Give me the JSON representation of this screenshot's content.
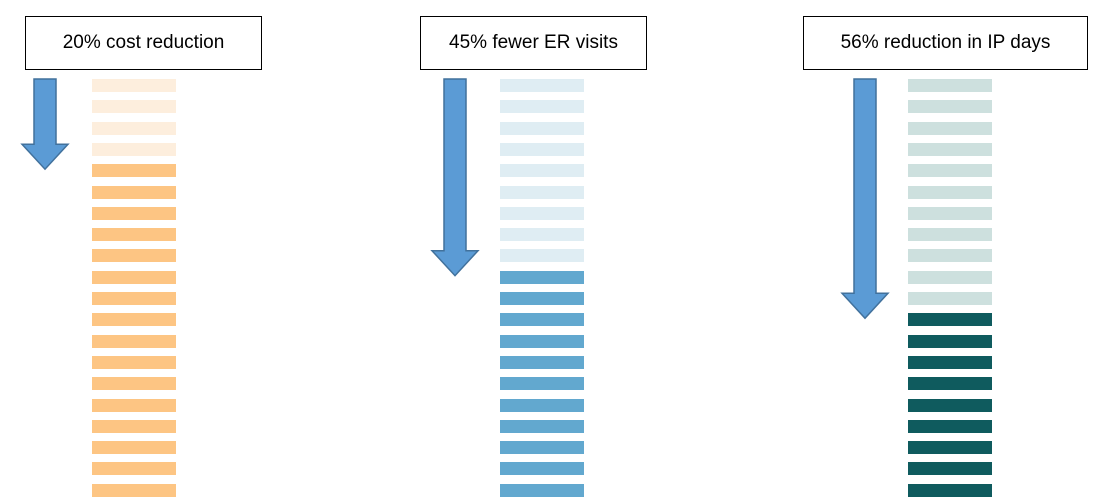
{
  "chart_data": {
    "type": "bar",
    "total_segments": 20,
    "panels": [
      {
        "label": "20% cost reduction",
        "percent_reduction": 20,
        "colors": {
          "reduced": "#fdeedd",
          "remaining": "#fdc583",
          "arrow": "#5b9bd5"
        }
      },
      {
        "label": "45% fewer ER visits",
        "percent_reduction": 45,
        "colors": {
          "reduced": "#dfedf3",
          "remaining": "#62a8cf",
          "arrow": "#5b9bd5"
        }
      },
      {
        "label": "56% reduction in IP days",
        "percent_reduction": 56,
        "colors": {
          "reduced": "#cde0de",
          "remaining": "#0f5b5e",
          "arrow": "#5b9bd5"
        }
      }
    ]
  }
}
